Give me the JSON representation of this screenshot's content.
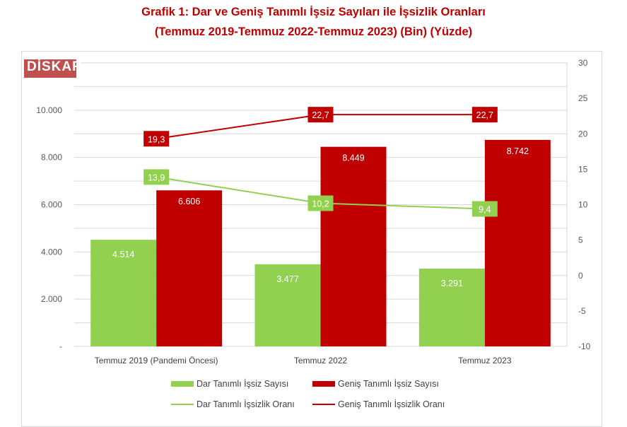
{
  "title_line1": "Grafik 1: Dar ve Geniş Tanımlı İşsiz Sayıları ile İşsizlik Oranları",
  "title_line2": "(Temmuz 2019-Temmuz 2022-Temmuz 2023) (Bin) (Yüzde)",
  "logo_text": "DİSKAR",
  "colors": {
    "green": "#92d050",
    "red": "#c00000"
  },
  "chart_data": {
    "type": "bar",
    "categories": [
      "Temmuz 2019 (Pandemi Öncesi)",
      "Temmuz 2022",
      "Temmuz 2023"
    ],
    "series": [
      {
        "name": "Dar Tanımlı İşsiz Sayısı",
        "type": "bar",
        "axis": "left",
        "values": [
          4514,
          3477,
          3291
        ],
        "labels": [
          "4.514",
          "3.477",
          "3.291"
        ]
      },
      {
        "name": "Geniş Tanımlı İşsiz Sayısı",
        "type": "bar",
        "axis": "left",
        "values": [
          6606,
          8449,
          8742
        ],
        "labels": [
          "6.606",
          "8.449",
          "8.742"
        ]
      },
      {
        "name": "Dar Tanımlı İşsizlik Oranı",
        "type": "line",
        "axis": "right",
        "values": [
          13.9,
          10.2,
          9.4
        ],
        "labels": [
          "13,9",
          "10,2",
          "9,4"
        ]
      },
      {
        "name": "Geniş Tanımlı İşsizlik Oranı",
        "type": "line",
        "axis": "right",
        "values": [
          19.3,
          22.7,
          22.7
        ],
        "labels": [
          "19,3",
          "22,7",
          "22,7"
        ]
      }
    ],
    "left_axis": {
      "range": [
        0,
        12000
      ],
      "ticks": [
        0,
        2000,
        4000,
        6000,
        8000,
        10000
      ],
      "tick_labels": [
        "-",
        "2.000",
        "4.000",
        "6.000",
        "8.000",
        "10.000"
      ]
    },
    "right_axis": {
      "range": [
        -10,
        30
      ],
      "ticks": [
        -10,
        -5,
        0,
        5,
        10,
        15,
        20,
        25,
        30
      ],
      "tick_labels": [
        "-10",
        "-5",
        "0",
        "5",
        "10",
        "15",
        "20",
        "25",
        "30"
      ]
    },
    "grid": true,
    "legend_position": "bottom"
  }
}
